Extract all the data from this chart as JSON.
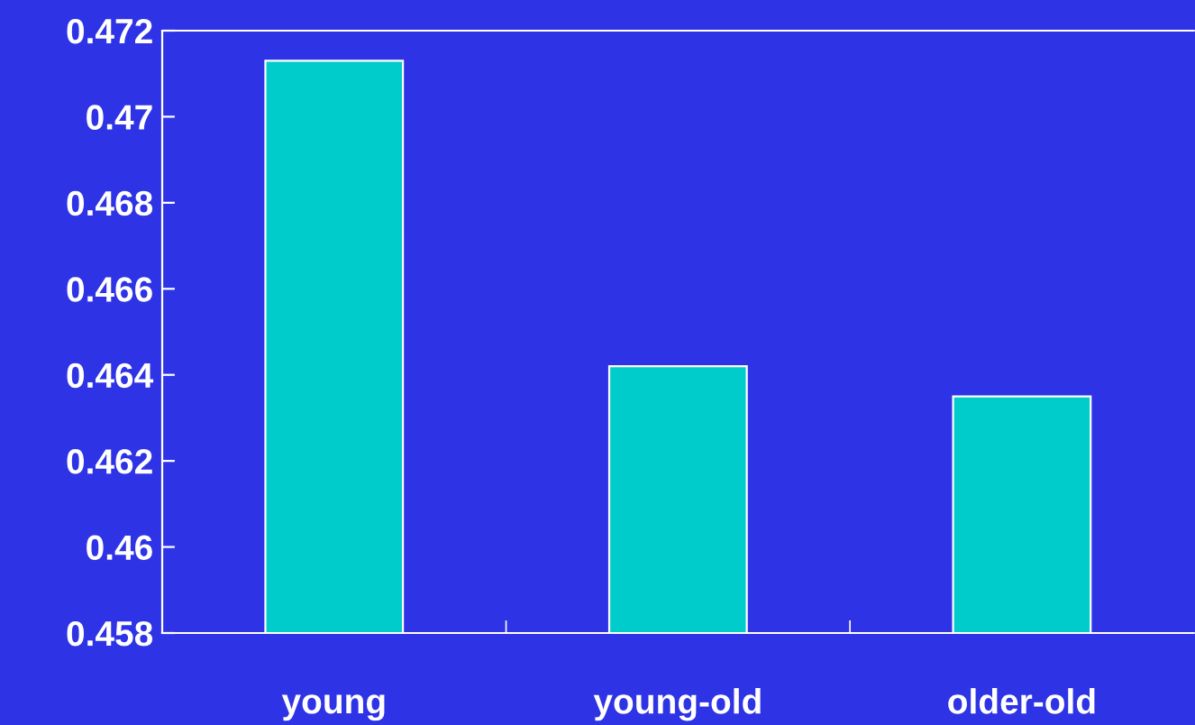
{
  "chart_data": {
    "type": "bar",
    "categories": [
      "young",
      "young-old",
      "older-old"
    ],
    "values": [
      0.4713,
      0.4642,
      0.4635
    ],
    "color": "#00cccc",
    "ylim": [
      0.458,
      0.472
    ],
    "yticks": [
      0.458,
      0.46,
      0.462,
      0.464,
      0.466,
      0.468,
      0.47,
      0.472
    ],
    "grid": false,
    "legend": false
  }
}
